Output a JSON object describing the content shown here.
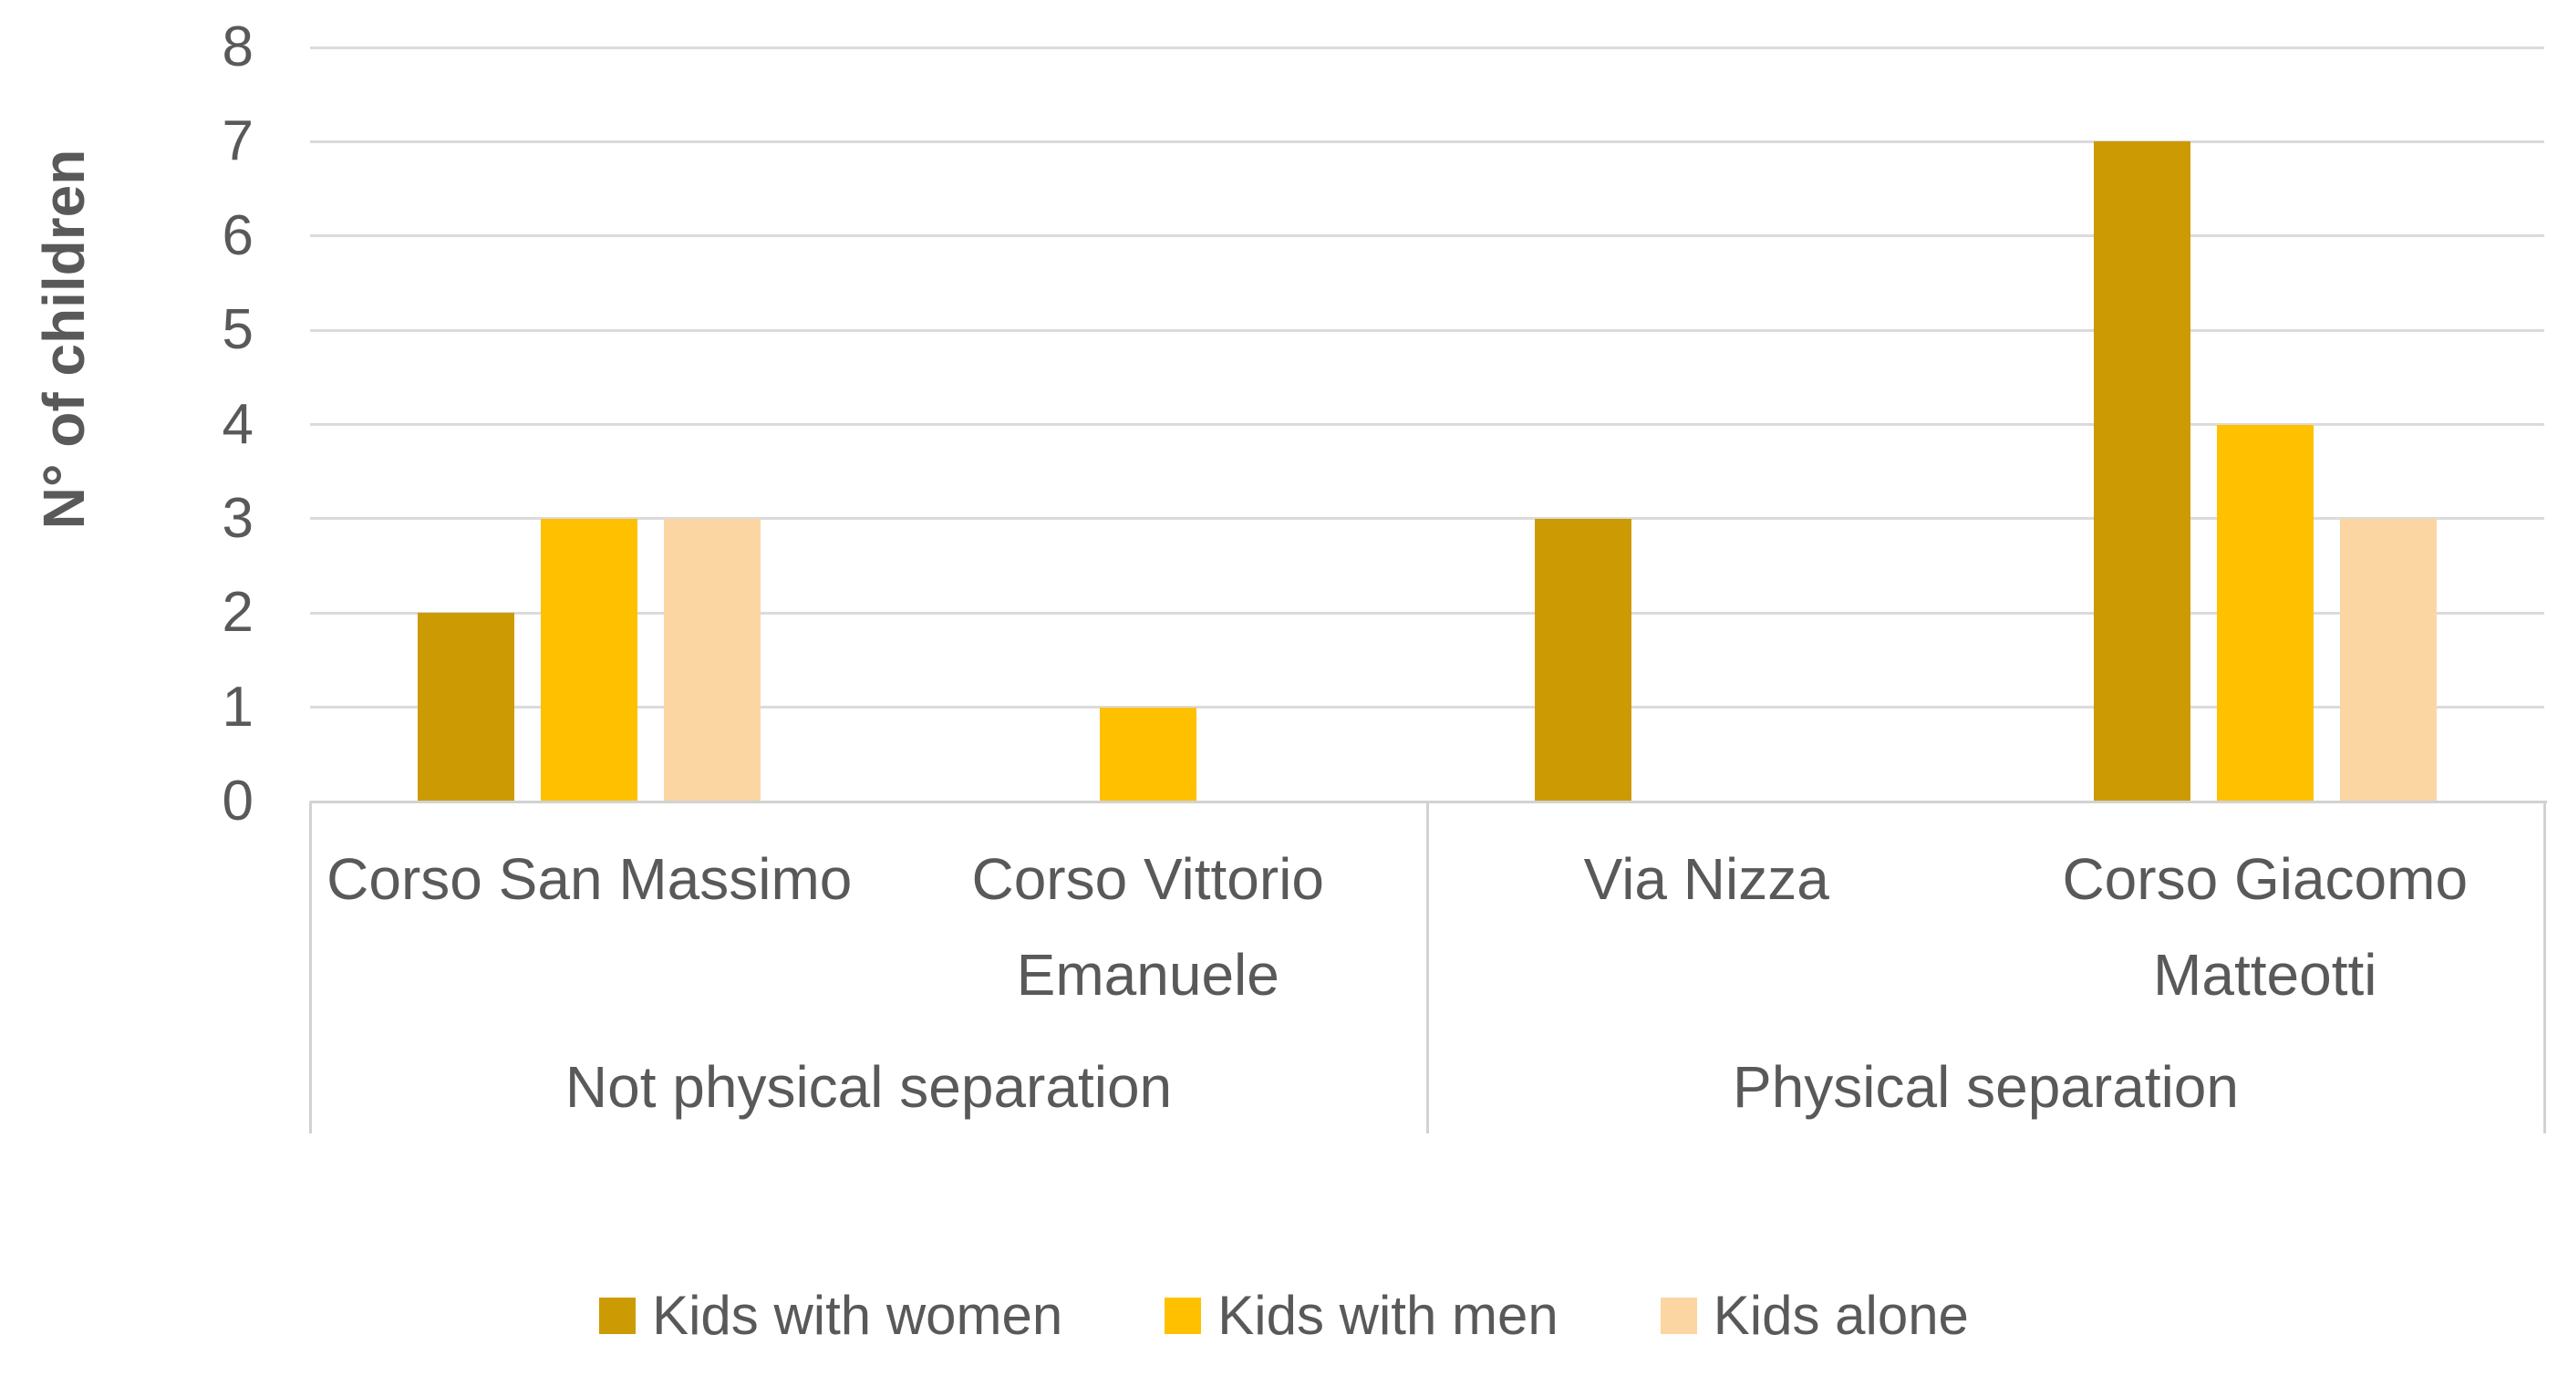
{
  "chart_data": {
    "type": "bar",
    "title": "",
    "ylabel": "N° of children",
    "xlabel": "",
    "ylim": [
      0,
      8
    ],
    "yticks": [
      0,
      1,
      2,
      3,
      4,
      5,
      6,
      7,
      8
    ],
    "grid": "horizontal",
    "legend_position": "bottom",
    "categories": [
      "Corso San Massimo",
      "Corso Vittorio Emanuele",
      "Via Nizza",
      "Corso Giacomo Matteotti"
    ],
    "category_label_lines": [
      [
        "Corso San Massimo"
      ],
      [
        "Corso Vittorio",
        "Emanuele"
      ],
      [
        "Via Nizza"
      ],
      [
        "Corso Giacomo",
        "Matteotti"
      ]
    ],
    "groups": [
      {
        "label": "Not physical separation",
        "categories": [
          "Corso San Massimo",
          "Corso Vittorio Emanuele"
        ]
      },
      {
        "label": "Physical separation",
        "categories": [
          "Via Nizza",
          "Corso Giacomo Matteotti"
        ]
      }
    ],
    "series": [
      {
        "name": "Kids with women",
        "color": "#CC9A02",
        "values": [
          2,
          0,
          3,
          7
        ]
      },
      {
        "name": "Kids with men",
        "color": "#FFC000",
        "values": [
          3,
          1,
          0,
          4
        ]
      },
      {
        "name": "Kids alone",
        "color": "#FBD6A3",
        "values": [
          3,
          0,
          0,
          3
        ]
      }
    ],
    "colors": {
      "axis_text": "#595959",
      "gridline": "#DBDBDB",
      "axis_line": "#D2D2D2"
    }
  }
}
